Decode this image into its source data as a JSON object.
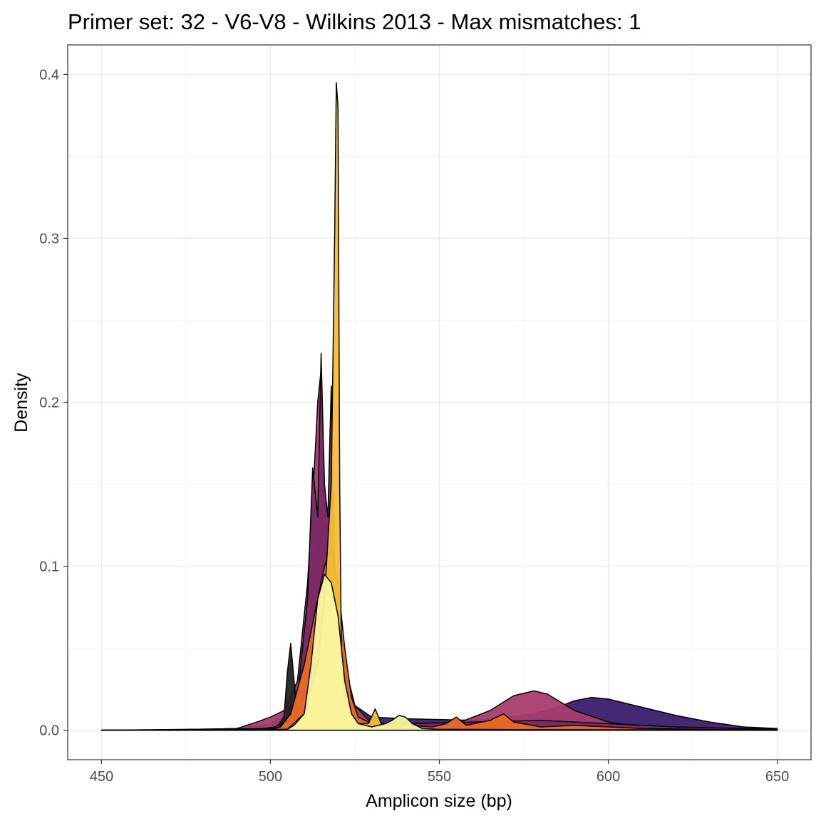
{
  "chart_data": {
    "type": "area",
    "subtype": "overlapping density curves",
    "title": "Primer set: 32 - V6-V8 - Wilkins 2013 - Max mismatches: 1",
    "xlabel": "Amplicon size (bp)",
    "ylabel": "Density",
    "xlim": [
      440,
      660
    ],
    "ylim": [
      -0.018,
      0.418
    ],
    "xticks": [
      450,
      500,
      550,
      600,
      650
    ],
    "xtick_labels": [
      "450",
      "500",
      "550",
      "600",
      "650"
    ],
    "yticks": [
      0.0,
      0.1,
      0.2,
      0.3,
      0.4
    ],
    "ytick_labels": [
      "0.0",
      "0.1",
      "0.2",
      "0.3",
      "0.4"
    ],
    "grid": true,
    "legend": "none",
    "palette": "inferno",
    "series": [
      {
        "color": "#3b1c6b",
        "x": [
          450,
          470,
          490,
          500,
          505,
          508,
          512,
          514,
          515.5,
          517,
          518.5,
          520,
          522,
          525,
          530,
          540,
          560,
          570,
          578,
          585,
          590,
          595,
          600,
          610,
          620,
          630,
          640,
          650
        ],
        "y": [
          0,
          0.0002,
          0.001,
          0.004,
          0.01,
          0.03,
          0.09,
          0.12,
          0.16,
          0.12,
          0.1,
          0.08,
          0.04,
          0.015,
          0.008,
          0.007,
          0.006,
          0.008,
          0.01,
          0.014,
          0.018,
          0.02,
          0.019,
          0.014,
          0.009,
          0.005,
          0.002,
          0.001
        ]
      },
      {
        "color": "#a83d6e",
        "x": [
          450,
          480,
          490,
          496,
          500,
          504,
          508,
          511,
          513,
          514,
          515,
          516,
          517,
          519,
          521,
          525,
          530,
          540,
          555,
          565,
          572,
          578,
          582,
          590,
          600,
          610,
          630,
          650
        ],
        "y": [
          0,
          0.0003,
          0.001,
          0.005,
          0.008,
          0.012,
          0.03,
          0.09,
          0.16,
          0.2,
          0.22,
          0.14,
          0.11,
          0.08,
          0.04,
          0.015,
          0.004,
          0.002,
          0.004,
          0.012,
          0.021,
          0.024,
          0.022,
          0.012,
          0.005,
          0.002,
          0.0005,
          0.0002
        ]
      },
      {
        "color": "#222222",
        "x": [
          450,
          495,
          502,
          504,
          505,
          506,
          507,
          508,
          510,
          512,
          514,
          516,
          518,
          520,
          522,
          526,
          535,
          550,
          570,
          600,
          650
        ],
        "y": [
          0,
          0.0005,
          0.002,
          0.008,
          0.035,
          0.053,
          0.03,
          0.008,
          0.004,
          0.003,
          0.002,
          0.002,
          0.002,
          0.002,
          0.002,
          0.001,
          0.001,
          0.0005,
          0.0005,
          0.0003,
          0.0001
        ]
      },
      {
        "color": "#7b2a66",
        "x": [
          450,
          500,
          505,
          508,
          511,
          512.5,
          514,
          515,
          516,
          517,
          518,
          519,
          520,
          521,
          523,
          526,
          530,
          540,
          560,
          580,
          600,
          620,
          650
        ],
        "y": [
          0,
          0.001,
          0.005,
          0.02,
          0.08,
          0.16,
          0.13,
          0.23,
          0.15,
          0.13,
          0.21,
          0.1,
          0.06,
          0.03,
          0.01,
          0.006,
          0.004,
          0.004,
          0.005,
          0.006,
          0.004,
          0.002,
          0.0005
        ]
      },
      {
        "color": "#e96c24",
        "x": [
          450,
          500,
          503,
          506,
          508,
          510,
          512,
          514,
          516,
          518,
          520,
          522,
          524,
          526,
          530,
          540,
          548,
          552,
          555,
          558,
          565,
          569,
          572,
          580,
          590,
          610,
          630,
          650
        ],
        "y": [
          0,
          0.0005,
          0.002,
          0.01,
          0.025,
          0.04,
          0.06,
          0.08,
          0.1,
          0.11,
          0.09,
          0.05,
          0.02,
          0.008,
          0.004,
          0.003,
          0.002,
          0.004,
          0.008,
          0.003,
          0.006,
          0.01,
          0.005,
          0.002,
          0.003,
          0.001,
          0.0005,
          0.0002
        ]
      },
      {
        "color": "#f4be34",
        "x": [
          450,
          505,
          510,
          514,
          516,
          518,
          519,
          519.5,
          520,
          520.5,
          521,
          522,
          524,
          526,
          529,
          531,
          533,
          540,
          550,
          600,
          650
        ],
        "y": [
          0,
          0.0005,
          0.01,
          0.04,
          0.08,
          0.15,
          0.3,
          0.395,
          0.38,
          0.15,
          0.05,
          0.02,
          0.008,
          0.004,
          0.004,
          0.013,
          0.003,
          0.001,
          0.0005,
          0.0002,
          0.0001
        ]
      },
      {
        "color": "#fbf69f",
        "x": [
          450,
          505,
          507,
          510,
          512,
          514,
          516,
          518,
          520,
          522,
          524,
          526,
          530,
          534,
          536,
          538,
          540,
          542,
          545,
          550,
          600,
          650
        ],
        "y": [
          0,
          0.0005,
          0.003,
          0.01,
          0.04,
          0.08,
          0.095,
          0.09,
          0.07,
          0.03,
          0.01,
          0.004,
          0.002,
          0.004,
          0.006,
          0.009,
          0.008,
          0.004,
          0.001,
          0.0005,
          0.0002,
          0.0001
        ]
      }
    ]
  }
}
